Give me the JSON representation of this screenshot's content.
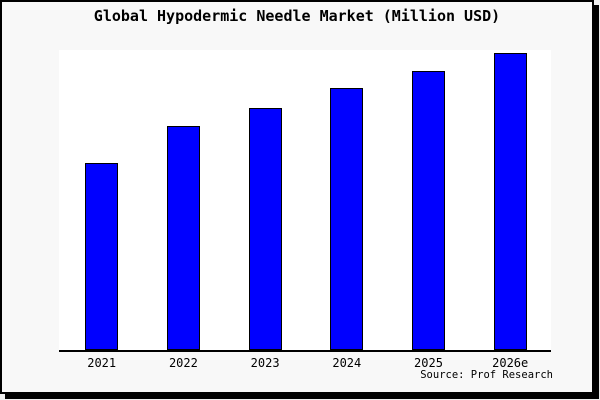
{
  "window": {
    "background_color": "#f8f8f8",
    "plot_background_color": "#ffffff",
    "border_color": "#000000"
  },
  "chart_data": {
    "type": "bar",
    "title": "Global Hypodermic Needle Market (Million USD)",
    "categories": [
      "2021",
      "2022",
      "2023",
      "2024",
      "2025",
      "2026e"
    ],
    "values_relative_pct": [
      62.7,
      75.0,
      81.3,
      87.8,
      93.7,
      99.7
    ],
    "value_note": "y-axis has no tick labels or gridlines; values are bar heights estimated as percent of full plot height",
    "xlabel": "",
    "ylabel": "",
    "ylim_relative": [
      0,
      100
    ],
    "grid": false,
    "legend": false,
    "bar_color": "#0000ff",
    "bar_border_color": "#000000"
  },
  "source": {
    "label": "Source: Prof Research"
  }
}
